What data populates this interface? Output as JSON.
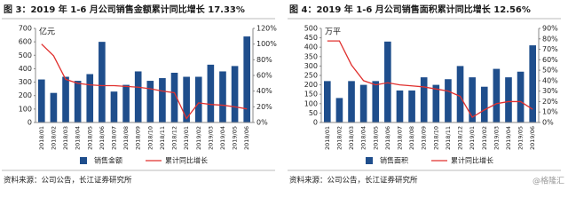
{
  "chart_data": [
    {
      "type": "combo",
      "title": "图 3：2019 年 1-6 月公司销售金额累计同比增长 17.33%",
      "unit_label": "亿元",
      "categories": [
        "2018/01",
        "2018/02",
        "2018/03",
        "2018/04",
        "2018/05",
        "2018/06",
        "2018/07",
        "2018/08",
        "2018/09",
        "2018/10",
        "2018/11",
        "2018/12",
        "2019/01",
        "2019/02",
        "2019/03",
        "2019/04",
        "2019/05",
        "2019/06"
      ],
      "series": [
        {
          "name": "销售金额",
          "type": "bar",
          "color": "#1f4e8c",
          "values": [
            320,
            220,
            340,
            310,
            360,
            600,
            230,
            280,
            380,
            310,
            330,
            370,
            340,
            340,
            430,
            380,
            420,
            640
          ]
        },
        {
          "name": "累计同比增长",
          "type": "line",
          "axis": "y2",
          "color": "#e0302e",
          "values": [
            100,
            85,
            55,
            50,
            48,
            47,
            47,
            46,
            45,
            43,
            40,
            38,
            5,
            25,
            23,
            22,
            20,
            17.33
          ]
        }
      ],
      "ylim": [
        0,
        700
      ],
      "yticks": [
        0,
        100,
        200,
        300,
        400,
        500,
        600,
        700
      ],
      "y2lim": [
        0,
        120
      ],
      "y2ticks": [
        {
          "value": 0,
          "label": "0%"
        },
        {
          "value": 20,
          "label": "20%"
        },
        {
          "value": 40,
          "label": "40%"
        },
        {
          "value": 60,
          "label": "60%"
        },
        {
          "value": 80,
          "label": "80%"
        },
        {
          "value": 100,
          "label": "100%"
        },
        {
          "value": 120,
          "label": "120%"
        }
      ],
      "source": "资料来源：公司公告，长江证券研究所"
    },
    {
      "type": "combo",
      "title": "图 4：2019 年 1-6 月公司销售面积累计同比增长 12.56%",
      "unit_label": "万平",
      "categories": [
        "2018/01",
        "2018/02",
        "2018/03",
        "2018/04",
        "2018/05",
        "2018/06",
        "2018/07",
        "2018/08",
        "2018/09",
        "2018/10",
        "2018/11",
        "2018/12",
        "2019/01",
        "2019/02",
        "2019/03",
        "2019/04",
        "2019/05",
        "2019/06"
      ],
      "series": [
        {
          "name": "销售面积",
          "type": "bar",
          "color": "#1f4e8c",
          "values": [
            220,
            130,
            220,
            200,
            220,
            430,
            170,
            170,
            240,
            200,
            230,
            300,
            240,
            190,
            285,
            240,
            270,
            410
          ]
        },
        {
          "name": "累计同比增长",
          "type": "line",
          "axis": "y2",
          "color": "#e0302e",
          "values": [
            78,
            78,
            55,
            40,
            36,
            38,
            36,
            35,
            34,
            32,
            30,
            25,
            5,
            12,
            18,
            20,
            20,
            12.56
          ]
        }
      ],
      "ylim": [
        0,
        500
      ],
      "yticks": [
        0,
        50,
        100,
        150,
        200,
        250,
        300,
        350,
        400,
        450,
        500
      ],
      "y2lim": [
        0,
        90
      ],
      "y2ticks": [
        {
          "value": 0,
          "label": "0%"
        },
        {
          "value": 10,
          "label": "10%"
        },
        {
          "value": 20,
          "label": "20%"
        },
        {
          "value": 30,
          "label": "30%"
        },
        {
          "value": 40,
          "label": "40%"
        },
        {
          "value": 50,
          "label": "50%"
        },
        {
          "value": 60,
          "label": "60%"
        },
        {
          "value": 70,
          "label": "70%"
        },
        {
          "value": 80,
          "label": "80%"
        },
        {
          "value": 90,
          "label": "90%"
        }
      ],
      "source": "资料来源：公司公告，长江证券研究所"
    }
  ],
  "watermark": "@格隆汇"
}
